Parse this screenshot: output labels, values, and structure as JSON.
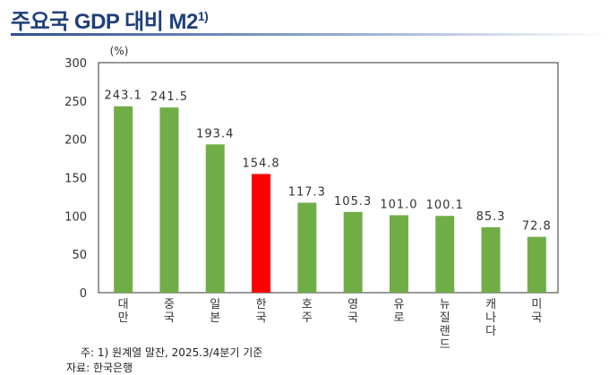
{
  "title": "주요국 GDP 대비 M2",
  "title_sup": "1)",
  "chart_data": {
    "type": "bar",
    "unit_label": "(%)",
    "categories": [
      "대만",
      "중국",
      "일본",
      "한국",
      "호주",
      "영국",
      "유로",
      "뉴질랜드",
      "캐나다",
      "미국"
    ],
    "values": [
      243.1,
      241.5,
      193.4,
      154.8,
      117.3,
      105.3,
      101.0,
      100.1,
      85.3,
      72.8
    ],
    "value_labels": [
      "243.1",
      "241.5",
      "193.4",
      "154.8",
      "117.3",
      "105.3",
      "101.0",
      "100.1",
      "85.3",
      "72.8"
    ],
    "ylim": [
      0,
      300
    ],
    "yticks": [
      0,
      50,
      100,
      150,
      200,
      250,
      300
    ],
    "grid": false,
    "colors": {
      "default": "#70ad47",
      "highlight": "#ff0000"
    },
    "highlight": "한국"
  },
  "notes": {
    "note": "주: 1) 원계열 말잔, 2025.3/4분기 기준",
    "source": "자료: 한국은행"
  }
}
